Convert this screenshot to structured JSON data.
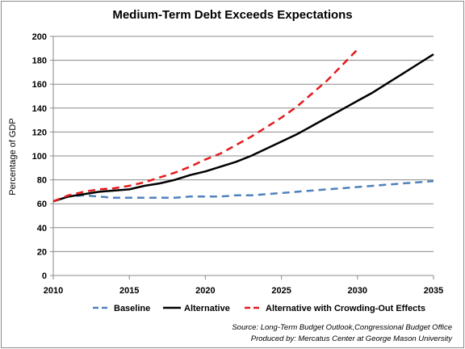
{
  "chart_data": {
    "type": "line",
    "title": "Medium-Term Debt Exceeds Expectations",
    "xlabel": "",
    "ylabel": "Percentage of GDP",
    "xlim": [
      2010,
      2035
    ],
    "ylim": [
      0,
      200
    ],
    "x_ticks": [
      "2010",
      "2015",
      "2020",
      "2025",
      "2030",
      "2035"
    ],
    "y_ticks": [
      "0",
      "20",
      "40",
      "60",
      "80",
      "100",
      "120",
      "140",
      "160",
      "180",
      "200"
    ],
    "grid": "horizontal",
    "legend": "bottom",
    "series": [
      {
        "name": "Baseline",
        "color": "#4f81bd",
        "style": "dashed",
        "points": [
          [
            2010,
            62
          ],
          [
            2011,
            66
          ],
          [
            2012,
            67
          ],
          [
            2013,
            66
          ],
          [
            2014,
            65
          ],
          [
            2015,
            65
          ],
          [
            2016,
            65
          ],
          [
            2017,
            65
          ],
          [
            2018,
            65
          ],
          [
            2019,
            66
          ],
          [
            2020,
            66
          ],
          [
            2021,
            66
          ],
          [
            2022,
            67
          ],
          [
            2023,
            67
          ],
          [
            2024,
            68
          ],
          [
            2025,
            69
          ],
          [
            2026,
            70
          ],
          [
            2027,
            71
          ],
          [
            2028,
            72
          ],
          [
            2029,
            73
          ],
          [
            2030,
            74
          ],
          [
            2031,
            75
          ],
          [
            2032,
            76
          ],
          [
            2033,
            77
          ],
          [
            2034,
            78
          ],
          [
            2035,
            79
          ]
        ]
      },
      {
        "name": "Alternative",
        "color": "#000000",
        "style": "solid",
        "points": [
          [
            2010,
            62
          ],
          [
            2011,
            66
          ],
          [
            2012,
            68
          ],
          [
            2013,
            70
          ],
          [
            2014,
            71
          ],
          [
            2015,
            72
          ],
          [
            2016,
            75
          ],
          [
            2017,
            77
          ],
          [
            2018,
            80
          ],
          [
            2019,
            84
          ],
          [
            2020,
            87
          ],
          [
            2021,
            91
          ],
          [
            2022,
            95
          ],
          [
            2023,
            100
          ],
          [
            2024,
            106
          ],
          [
            2025,
            112
          ],
          [
            2026,
            118
          ],
          [
            2027,
            125
          ],
          [
            2028,
            132
          ],
          [
            2029,
            139
          ],
          [
            2030,
            146
          ],
          [
            2031,
            153
          ],
          [
            2032,
            161
          ],
          [
            2033,
            169
          ],
          [
            2034,
            177
          ],
          [
            2035,
            185
          ]
        ]
      },
      {
        "name": "Alternative with Crowding-Out Effects",
        "color": "#e41a1c",
        "style": "dashed",
        "points": [
          [
            2010,
            62
          ],
          [
            2011,
            67
          ],
          [
            2012,
            70
          ],
          [
            2013,
            72
          ],
          [
            2014,
            73
          ],
          [
            2015,
            75
          ],
          [
            2016,
            78
          ],
          [
            2017,
            82
          ],
          [
            2018,
            86
          ],
          [
            2019,
            91
          ],
          [
            2020,
            97
          ],
          [
            2021,
            102
          ],
          [
            2022,
            109
          ],
          [
            2023,
            116
          ],
          [
            2024,
            124
          ],
          [
            2025,
            132
          ],
          [
            2026,
            141
          ],
          [
            2027,
            152
          ],
          [
            2028,
            163
          ],
          [
            2029,
            176
          ],
          [
            2030,
            189
          ]
        ]
      }
    ],
    "source_note": "Source: Long-Term Budget  Outlook,Congressional Budget Office",
    "producer_note": "Produced by: Mercatus Center at George Mason University"
  }
}
